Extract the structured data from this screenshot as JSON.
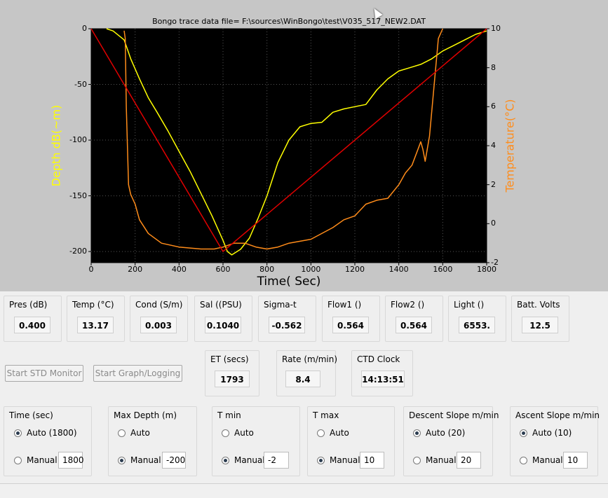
{
  "plot": {
    "title": "Bongo trace data file= F:\\sources\\WinBongo\\test\\V035_517_NEW2.DAT",
    "xlabel": "Time( Sec)",
    "ylabel_left": "Depth dB(~m)",
    "ylabel_right": "Temperature(°C)",
    "colors": {
      "depth": "#ffff00",
      "temperature": "#ff8c1a",
      "slope": "#e00000",
      "background": "#000000"
    }
  },
  "chart_data": {
    "type": "line",
    "title": "Bongo trace data file= F:\\sources\\WinBongo\\test\\V035_517_NEW2.DAT",
    "xlabel": "Time( Sec)",
    "ylabel": "Depth dB(~m)",
    "y2label": "Temperature(°C)",
    "xlim": [
      0,
      1800
    ],
    "ylim": [
      -210,
      0
    ],
    "y2lim": [
      -2,
      10
    ],
    "grid": true,
    "x_ticks": [
      0,
      200,
      400,
      600,
      800,
      1000,
      1200,
      1400,
      1600,
      1800
    ],
    "y_ticks": [
      0,
      -50,
      -100,
      -150,
      -200
    ],
    "y2_ticks": [
      10,
      8,
      6,
      4,
      2,
      0,
      -2
    ],
    "series": [
      {
        "axis": "left",
        "color": "#ffff00",
        "x": [
          70,
          100,
          150,
          180,
          220,
          260,
          300,
          350,
          400,
          450,
          500,
          550,
          600,
          620,
          640,
          680,
          720,
          760,
          800,
          850,
          900,
          950,
          1000,
          1050,
          1100,
          1150,
          1200,
          1250,
          1300,
          1350,
          1400,
          1450,
          1500,
          1550,
          1600,
          1650,
          1700,
          1750,
          1800
        ],
        "y": [
          0,
          -2,
          -10,
          -27,
          -45,
          -62,
          -75,
          -92,
          -110,
          -128,
          -148,
          -168,
          -190,
          -200,
          -203,
          -198,
          -188,
          -170,
          -150,
          -120,
          -100,
          -88,
          -85,
          -84,
          -75,
          -72,
          -70,
          -68,
          -55,
          -45,
          -38,
          -35,
          -32,
          -27,
          -20,
          -15,
          -10,
          -5,
          -2
        ]
      },
      {
        "axis": "right",
        "color": "#ff8c1a",
        "x": [
          150,
          155,
          160,
          170,
          180,
          200,
          220,
          260,
          320,
          400,
          500,
          560,
          600,
          650,
          700,
          750,
          800,
          850,
          900,
          1000,
          1100,
          1150,
          1200,
          1250,
          1300,
          1350,
          1400,
          1430,
          1460,
          1490,
          1500,
          1510,
          1520,
          1540,
          1560,
          1580,
          1600
        ],
        "y": [
          9.9,
          9.5,
          6.0,
          2.0,
          1.5,
          1.0,
          0.2,
          -0.5,
          -1.0,
          -1.2,
          -1.3,
          -1.3,
          -1.2,
          -1.0,
          -1.0,
          -1.2,
          -1.3,
          -1.2,
          -1.0,
          -0.8,
          -0.2,
          0.2,
          0.4,
          1.0,
          1.2,
          1.3,
          2.0,
          2.6,
          3.0,
          3.9,
          4.2,
          3.8,
          3.2,
          4.5,
          7.0,
          9.5,
          10.0
        ]
      },
      {
        "axis": "left",
        "color": "#e00000",
        "x": [
          0,
          600,
          1800
        ],
        "y": [
          0,
          -200,
          0
        ]
      }
    ]
  },
  "readouts": [
    {
      "label": "Pres (dB)",
      "value": "0.400"
    },
    {
      "label": "Temp (°C)",
      "value": "13.17"
    },
    {
      "label": "Cond  (S/m)",
      "value": "0.003"
    },
    {
      "label": "Sal ((PSU)",
      "value": "0.1040"
    },
    {
      "label": "Sigma-t",
      "value": "-0.562"
    },
    {
      "label": "Flow1 ()",
      "value": "0.564"
    },
    {
      "label": "Flow2 ()",
      "value": "0.564"
    },
    {
      "label": "Light ()",
      "value": "6553."
    },
    {
      "label": "Batt. Volts",
      "value": "12.5"
    }
  ],
  "buttons": {
    "start_std_monitor": "Start STD Monitor",
    "start_graph_logging": "Start Graph/Logging"
  },
  "timers": [
    {
      "label": "ET (secs)",
      "value": "1793"
    },
    {
      "label": "Rate (m/min)",
      "value": "8.4"
    },
    {
      "label": "CTD Clock",
      "value": "14:13:51"
    }
  ],
  "settings": [
    {
      "title": "Time (sec)",
      "auto_label": "Auto (1800)",
      "manual_label": "Manual",
      "manual_value": "1800",
      "mode": "auto"
    },
    {
      "title": "Max Depth (m)",
      "auto_label": "Auto",
      "manual_label": "Manual",
      "manual_value": "-200",
      "mode": "manual"
    },
    {
      "title": "T min",
      "auto_label": "Auto",
      "manual_label": "Manual",
      "manual_value": "-2",
      "mode": "manual"
    },
    {
      "title": "T max",
      "auto_label": "Auto",
      "manual_label": "Manual",
      "manual_value": "10",
      "mode": "manual"
    },
    {
      "title": "Descent Slope m/min",
      "auto_label": "Auto (20)",
      "manual_label": "Manual",
      "manual_value": "20",
      "mode": "auto"
    },
    {
      "title": "Ascent Slope m/min",
      "auto_label": "Auto (10)",
      "manual_label": "Manual",
      "manual_value": "10",
      "mode": "auto"
    }
  ]
}
